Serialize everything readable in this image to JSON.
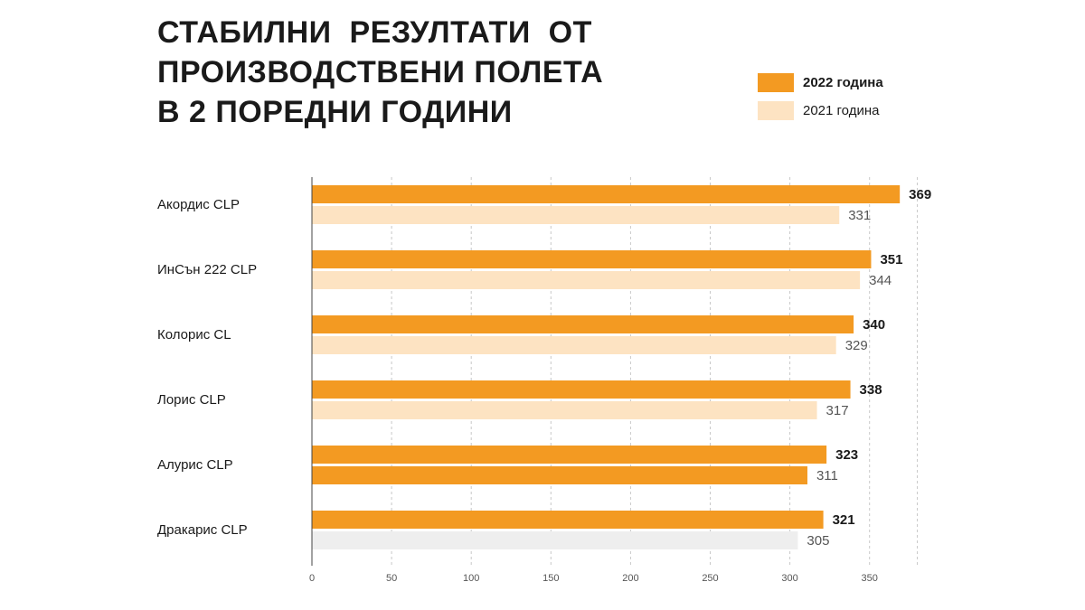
{
  "title": {
    "lines": [
      "СТАБИЛНИ  РЕЗУЛТАТИ  ОТ",
      "ПРОИЗВОДСТВЕНИ ПОЛЕТА",
      "В 2 ПОРЕДНИ ГОДИНИ"
    ]
  },
  "legend": [
    {
      "label": "2022 година",
      "color": "#f39a22",
      "bold": true
    },
    {
      "label": "2021 година",
      "color": "#fde3c2",
      "bold": false
    }
  ],
  "chart_data": {
    "type": "bar",
    "orientation": "horizontal",
    "categories": [
      "Акордис CLP",
      "ИнСън 222 CLP",
      "Колорис CL",
      "Лорис CLP",
      "Алурис CLP",
      "Дракарис CLP"
    ],
    "series": [
      {
        "name": "2022 година",
        "values": [
          369,
          351,
          340,
          338,
          323,
          321
        ],
        "color": "#f39a22"
      },
      {
        "name": "2021 година",
        "values": [
          331,
          344,
          329,
          317,
          311,
          305
        ],
        "color": "#fde3c2"
      }
    ],
    "bar_colors_2021": [
      "#fde3c2",
      "#fde3c2",
      "#fde3c2",
      "#fde3c2",
      "#f39a22",
      "#eeeeee"
    ],
    "xlim": [
      0,
      380
    ],
    "xticks": [
      0,
      50,
      100,
      150,
      200,
      250,
      300,
      350
    ],
    "grid": true,
    "legend_position": "top-right"
  }
}
